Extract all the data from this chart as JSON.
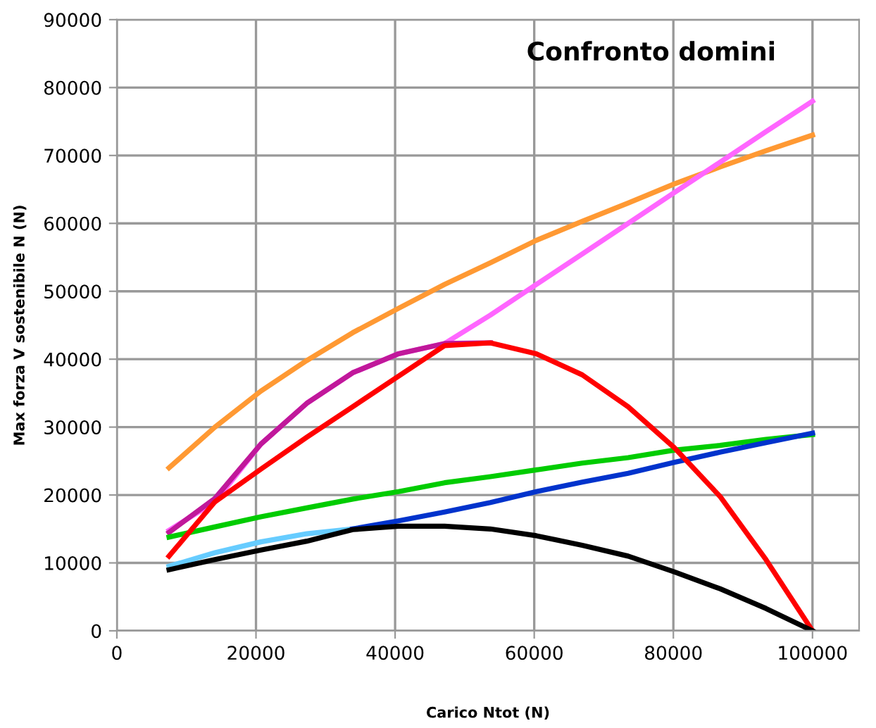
{
  "chart_data": {
    "type": "line",
    "title": "Confronto domini",
    "xlabel": "Carico Ntot (N)",
    "ylabel": "Max forza V sostenibile N (N)",
    "x": [
      7500,
      14100,
      20700,
      27300,
      33900,
      40500,
      47100,
      53700,
      60300,
      66900,
      73500,
      80100,
      86700,
      93300,
      100000
    ],
    "series": [
      {
        "color": "#ff9933",
        "values": [
          24000,
          30000,
          35300,
          39800,
          43900,
          47500,
          51000,
          54200,
          57500,
          60300,
          63000,
          65800,
          68300,
          70700,
          73000
        ]
      },
      {
        "color": "#ff66ff",
        "values": [
          14800,
          19000,
          27500,
          33500,
          38000,
          40800,
          42300,
          46500,
          51000,
          55500,
          60000,
          64500,
          69000,
          73500,
          78000
        ]
      },
      {
        "color": "#c0189a",
        "values": [
          14500,
          19500,
          27500,
          33500,
          38000,
          40800,
          42300,
          42400,
          null,
          null,
          null,
          null,
          null,
          null,
          null
        ]
      },
      {
        "color": "#00cc00",
        "values": [
          13800,
          15300,
          16800,
          18100,
          19400,
          20500,
          21800,
          22700,
          23700,
          24700,
          25500,
          26600,
          27300,
          28200,
          28900
        ]
      },
      {
        "color": "#66ccff",
        "values": [
          9500,
          11500,
          13100,
          14300,
          15000,
          null,
          null,
          null,
          null,
          null,
          null,
          null,
          null,
          null,
          null
        ]
      },
      {
        "color": "#0033cc",
        "values": [
          null,
          null,
          null,
          null,
          15000,
          16200,
          17500,
          18900,
          20500,
          21900,
          23200,
          24800,
          26300,
          27700,
          29100
        ]
      },
      {
        "color": "#ff0000",
        "values": [
          11000,
          19000,
          23800,
          28500,
          33000,
          37500,
          42000,
          42400,
          40800,
          37700,
          33000,
          27000,
          19800,
          10500,
          0
        ]
      },
      {
        "color": "#000000",
        "values": [
          9000,
          10500,
          11900,
          13200,
          14900,
          15400,
          15400,
          15000,
          14000,
          12600,
          11000,
          8700,
          6200,
          3300,
          0
        ]
      }
    ],
    "xlim": [
      0,
      106700
    ],
    "xticks": [
      0,
      20000,
      40000,
      60000,
      80000,
      100000
    ],
    "ylim": [
      0,
      90000
    ],
    "yticks": [
      0,
      10000,
      20000,
      30000,
      40000,
      50000,
      60000,
      70000,
      80000,
      90000
    ],
    "grid": true,
    "legend": false,
    "marker": "none",
    "line_style": "solid"
  }
}
